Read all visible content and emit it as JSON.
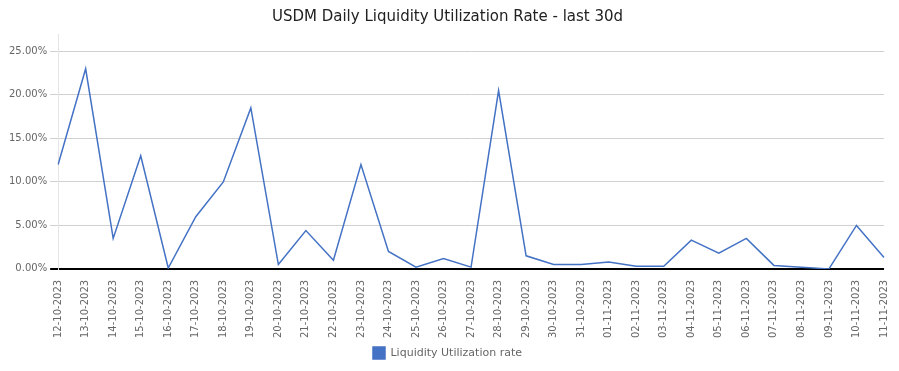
{
  "chart_data": {
    "type": "line",
    "title": "USDM Daily Liquidity Utilization Rate - last 30d",
    "categories": [
      "12-10-2023",
      "13-10-2023",
      "14-10-2023",
      "15-10-2023",
      "16-10-2023",
      "17-10-2023",
      "18-10-2023",
      "19-10-2023",
      "20-10-2023",
      "21-10-2023",
      "22-10-2023",
      "23-10-2023",
      "24-10-2023",
      "25-10-2023",
      "26-10-2023",
      "27-10-2023",
      "28-10-2023",
      "29-10-2023",
      "30-10-2023",
      "31-10-2023",
      "01-11-2023",
      "02-11-2023",
      "03-11-2023",
      "04-11-2023",
      "05-11-2023",
      "06-11-2023",
      "07-11-2023",
      "08-11-2023",
      "09-11-2023",
      "10-11-2023",
      "11-11-2023"
    ],
    "series": [
      {
        "name": "Liquidity Utilization rate",
        "color": "#4472c4",
        "values": [
          0.12,
          0.23,
          0.035,
          0.13,
          0.001,
          0.06,
          0.1,
          0.185,
          0.005,
          0.044,
          0.01,
          0.12,
          0.02,
          0.002,
          0.012,
          0.002,
          0.205,
          0.015,
          0.005,
          0.005,
          0.008,
          0.003,
          0.003,
          0.033,
          0.018,
          0.035,
          0.004,
          0.002,
          0.0,
          0.05,
          0.013
        ]
      }
    ],
    "ylim": [
      0.0,
      0.27
    ],
    "yticks": [
      {
        "value": 0.0,
        "label": "0.00%"
      },
      {
        "value": 0.05,
        "label": "5.00%"
      },
      {
        "value": 0.1,
        "label": "10.00%"
      },
      {
        "value": 0.15,
        "label": "15.00%"
      },
      {
        "value": 0.2,
        "label": "20.00%"
      },
      {
        "value": 0.25,
        "label": "25.00%"
      }
    ],
    "grid": true,
    "legend": "bottom"
  }
}
